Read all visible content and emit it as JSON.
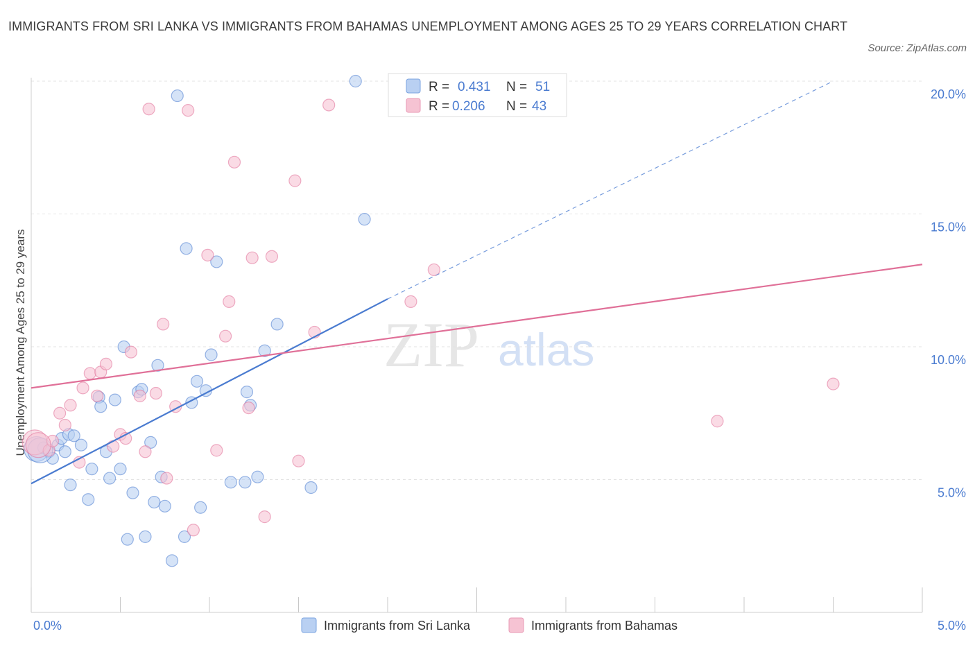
{
  "header": {
    "title": "IMMIGRANTS FROM SRI LANKA VS IMMIGRANTS FROM BAHAMAS UNEMPLOYMENT AMONG AGES 25 TO 29 YEARS CORRELATION CHART",
    "source": "Source: ZipAtlas.com"
  },
  "watermark": {
    "zip": "ZIP",
    "atlas": "atlas"
  },
  "legend": {
    "r_label": "R =",
    "n_label": "N =",
    "series": [
      {
        "name": "Immigrants from Sri Lanka",
        "r": "0.431",
        "n": "51",
        "color": "#4a7bd0"
      },
      {
        "name": "Immigrants from Bahamas",
        "r": "0.206",
        "n": "43",
        "color": "#e07098"
      }
    ]
  },
  "chart_data": {
    "type": "scatter",
    "title": "IMMIGRANTS FROM SRI LANKA VS IMMIGRANTS FROM BAHAMAS UNEMPLOYMENT AMONG AGES 25 TO 29 YEARS CORRELATION CHART",
    "xlabel": "",
    "ylabel": "Unemployment Among Ages 25 to 29 years",
    "xlim": [
      0,
      5
    ],
    "ylim": [
      0,
      20
    ],
    "x_tick_labels": [
      "0.0%",
      "5.0%"
    ],
    "y_ticks": [
      5,
      10,
      15,
      20
    ],
    "y_tick_labels": [
      "5.0%",
      "10.0%",
      "15.0%",
      "20.0%"
    ],
    "grid": true,
    "legend_position": "top-center",
    "series": [
      {
        "name": "Immigrants from Sri Lanka",
        "color": "#4a7bd0",
        "fill": "#b9d0f2",
        "trend": {
          "x0": 0.0,
          "y0": 4.85,
          "x1": 2.0,
          "y1": 11.8,
          "dash_to_x": 4.5,
          "dash_to_y": 20.0
        },
        "points": [
          [
            0.03,
            6.15
          ],
          [
            0.07,
            6.2
          ],
          [
            0.1,
            6.05
          ],
          [
            0.12,
            5.8
          ],
          [
            0.15,
            6.3
          ],
          [
            0.17,
            6.55
          ],
          [
            0.19,
            6.05
          ],
          [
            0.21,
            6.7
          ],
          [
            0.22,
            4.8
          ],
          [
            0.24,
            6.65
          ],
          [
            0.28,
            6.3
          ],
          [
            0.32,
            4.25
          ],
          [
            0.34,
            5.4
          ],
          [
            0.38,
            8.1
          ],
          [
            0.39,
            7.75
          ],
          [
            0.42,
            6.05
          ],
          [
            0.44,
            5.05
          ],
          [
            0.47,
            8.0
          ],
          [
            0.5,
            5.4
          ],
          [
            0.52,
            10.0
          ],
          [
            0.54,
            2.75
          ],
          [
            0.57,
            4.5
          ],
          [
            0.6,
            8.3
          ],
          [
            0.62,
            8.4
          ],
          [
            0.64,
            2.85
          ],
          [
            0.67,
            6.4
          ],
          [
            0.69,
            4.15
          ],
          [
            0.71,
            9.3
          ],
          [
            0.73,
            5.1
          ],
          [
            0.75,
            4.0
          ],
          [
            0.79,
            1.95
          ],
          [
            0.82,
            19.45
          ],
          [
            0.86,
            2.85
          ],
          [
            0.87,
            13.7
          ],
          [
            0.9,
            7.9
          ],
          [
            0.93,
            8.7
          ],
          [
            0.95,
            3.95
          ],
          [
            0.98,
            8.35
          ],
          [
            1.01,
            9.7
          ],
          [
            1.04,
            13.2
          ],
          [
            1.12,
            4.9
          ],
          [
            1.2,
            4.9
          ],
          [
            1.21,
            8.3
          ],
          [
            1.23,
            7.8
          ],
          [
            1.27,
            5.1
          ],
          [
            1.31,
            9.85
          ],
          [
            1.38,
            10.85
          ],
          [
            1.57,
            4.7
          ],
          [
            1.82,
            20.0
          ],
          [
            1.87,
            14.8
          ],
          [
            0.05,
            6.1
          ]
        ]
      },
      {
        "name": "Immigrants from Bahamas",
        "color": "#e07098",
        "fill": "#f6c3d3",
        "trend": {
          "x0": 0.0,
          "y0": 8.45,
          "x1": 5.0,
          "y1": 13.1
        },
        "points": [
          [
            0.02,
            6.4
          ],
          [
            0.1,
            6.1
          ],
          [
            0.12,
            6.45
          ],
          [
            0.16,
            7.5
          ],
          [
            0.19,
            7.05
          ],
          [
            0.22,
            7.8
          ],
          [
            0.27,
            5.65
          ],
          [
            0.29,
            8.45
          ],
          [
            0.33,
            9.0
          ],
          [
            0.37,
            8.15
          ],
          [
            0.39,
            9.05
          ],
          [
            0.42,
            9.35
          ],
          [
            0.46,
            6.25
          ],
          [
            0.5,
            6.7
          ],
          [
            0.53,
            6.55
          ],
          [
            0.56,
            9.8
          ],
          [
            0.61,
            8.15
          ],
          [
            0.64,
            6.05
          ],
          [
            0.66,
            18.95
          ],
          [
            0.7,
            8.25
          ],
          [
            0.74,
            10.85
          ],
          [
            0.76,
            5.05
          ],
          [
            0.81,
            7.75
          ],
          [
            0.88,
            18.9
          ],
          [
            0.91,
            3.1
          ],
          [
            0.99,
            13.45
          ],
          [
            1.04,
            6.1
          ],
          [
            1.09,
            10.4
          ],
          [
            1.11,
            11.7
          ],
          [
            1.14,
            16.95
          ],
          [
            1.22,
            7.7
          ],
          [
            1.24,
            13.35
          ],
          [
            1.31,
            3.6
          ],
          [
            1.35,
            13.4
          ],
          [
            1.48,
            16.25
          ],
          [
            1.5,
            5.7
          ],
          [
            1.59,
            10.55
          ],
          [
            1.67,
            19.1
          ],
          [
            2.13,
            11.7
          ],
          [
            2.26,
            12.9
          ],
          [
            3.85,
            7.2
          ],
          [
            4.5,
            8.6
          ],
          [
            0.04,
            6.3
          ]
        ]
      }
    ]
  }
}
